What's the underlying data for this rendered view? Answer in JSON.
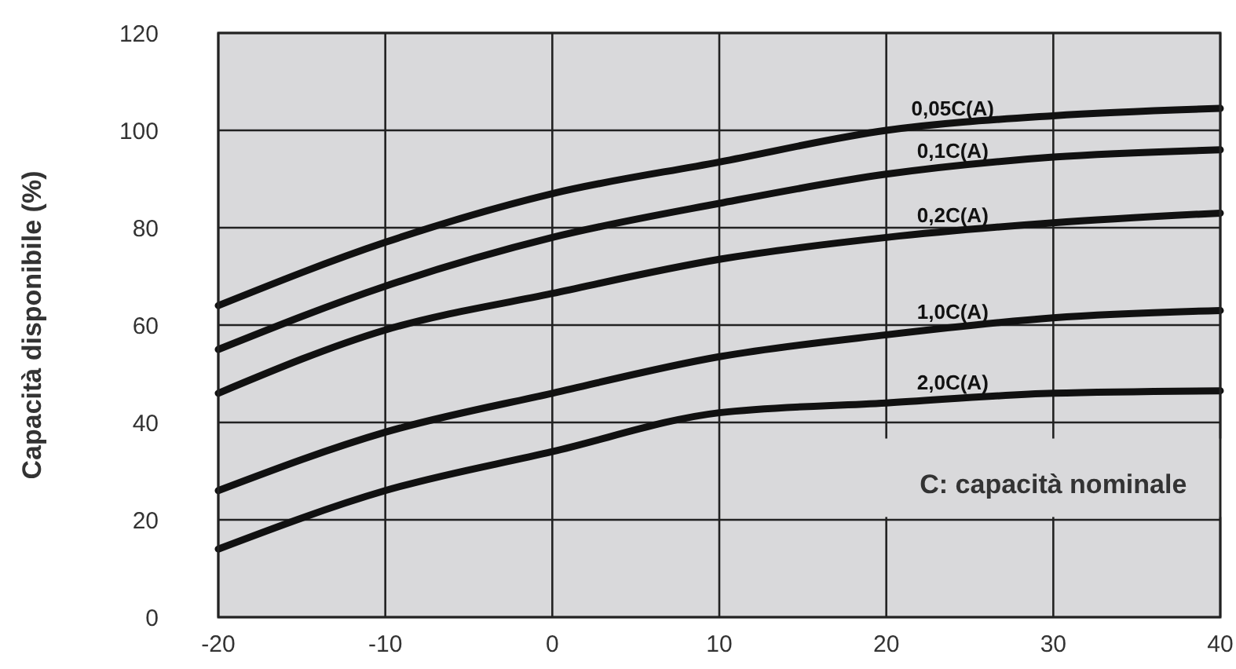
{
  "chart_data": {
    "type": "line",
    "ylabel": "Capacità disponibile (%)",
    "x": [
      -20,
      -10,
      0,
      10,
      20,
      30,
      40
    ],
    "series": [
      {
        "name": "0,05C(A)",
        "color": "#111111",
        "values": [
          64,
          77,
          87,
          93.5,
          100,
          103,
          104.5
        ]
      },
      {
        "name": "0,1C(A)",
        "color": "#111111",
        "values": [
          55,
          68,
          78,
          85,
          91,
          94.5,
          96
        ]
      },
      {
        "name": "0,2C(A)",
        "color": "#111111",
        "values": [
          46,
          59,
          66.5,
          73.5,
          78,
          81,
          83
        ]
      },
      {
        "name": "1,0C(A)",
        "color": "#111111",
        "values": [
          26,
          38,
          46,
          53.5,
          58,
          61.5,
          63
        ]
      },
      {
        "name": "2,0C(A)",
        "color": "#111111",
        "values": [
          14,
          26,
          34,
          42,
          44,
          46,
          46.5
        ]
      }
    ],
    "annotations": [
      "C: capacità nominale"
    ],
    "xlim": [
      -20,
      40
    ],
    "xticks": [
      -20,
      -10,
      0,
      10,
      20,
      30,
      40
    ],
    "ylim": [
      0,
      120
    ],
    "yticks": [
      0,
      20,
      40,
      60,
      80,
      100,
      120
    ],
    "grid": true,
    "marker": "none",
    "line_style": "solid"
  }
}
